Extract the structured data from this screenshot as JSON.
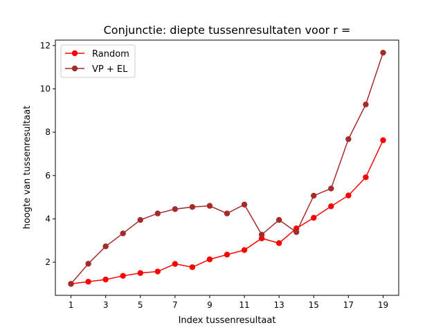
{
  "chart_data": {
    "type": "line",
    "title": "Conjunctie: diepte tussenresultaten voor r =",
    "xlabel": "Index tussenresultaat",
    "ylabel": "hoogte van tussenresultaat",
    "xlim": [
      0.1,
      19.9
    ],
    "ylim": [
      0.47,
      12.25
    ],
    "xticks": [
      1,
      3,
      5,
      7,
      9,
      11,
      13,
      15,
      17,
      19
    ],
    "yticks": [
      2,
      4,
      6,
      8,
      10,
      12
    ],
    "grid": false,
    "legend_position": "top-left",
    "x": [
      1,
      2,
      3,
      4,
      5,
      6,
      7,
      8,
      9,
      10,
      11,
      12,
      13,
      14,
      15,
      16,
      17,
      18,
      19
    ],
    "series": [
      {
        "name": "Random",
        "color": "#ff0000",
        "values": [
          1.0,
          1.1,
          1.2,
          1.37,
          1.5,
          1.57,
          1.92,
          1.77,
          2.13,
          2.35,
          2.56,
          3.1,
          2.88,
          3.56,
          4.05,
          4.58,
          5.08,
          5.92,
          7.63
        ]
      },
      {
        "name": "VP + EL",
        "color": "#a52a2a",
        "values": [
          1.0,
          1.93,
          2.73,
          3.33,
          3.95,
          4.25,
          4.45,
          4.55,
          4.6,
          4.25,
          4.66,
          3.27,
          3.95,
          3.39,
          5.07,
          5.4,
          7.68,
          9.28,
          11.67
        ]
      }
    ]
  }
}
